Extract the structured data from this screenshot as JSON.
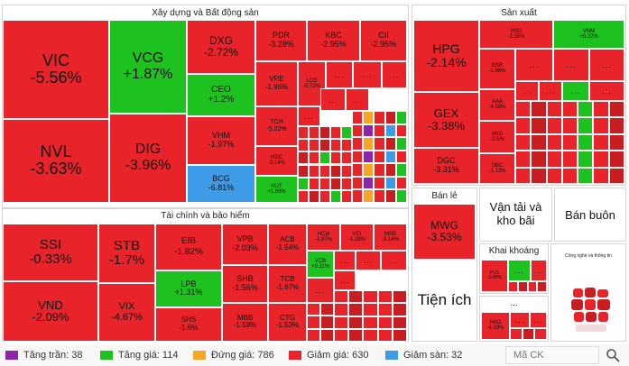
{
  "colors": {
    "red": "#e8242a",
    "green": "#1ec21e",
    "blue": "#3d9be8",
    "yellow": "#f5a623",
    "purple": "#8e24aa",
    "dark_red": "#c91d22"
  },
  "chart_data": {
    "type": "heatmap",
    "sectors": [
      {
        "name": "Xây dựng và Bất động sản",
        "tickers": [
          {
            "symbol": "VIC",
            "change": "-5.56%"
          },
          {
            "symbol": "NVL",
            "change": "-3.63%"
          },
          {
            "symbol": "VCG",
            "change": "+1.87%"
          },
          {
            "symbol": "DIG",
            "change": "-3.96%"
          },
          {
            "symbol": "DXG",
            "change": "-2.72%"
          },
          {
            "symbol": "CEO",
            "change": "+1.2%"
          },
          {
            "symbol": "VHM",
            "change": "-1.97%"
          },
          {
            "symbol": "BCG",
            "change": "-6.81%"
          },
          {
            "symbol": "PDR",
            "change": "-3.28%"
          },
          {
            "symbol": "KBC",
            "change": "-2.95%"
          },
          {
            "symbol": "CII",
            "change": "-2.95%"
          },
          {
            "symbol": "VRE",
            "change": "-1.96%"
          },
          {
            "symbol": "LCG",
            "change": "-0.72%"
          },
          {
            "symbol": "TCH",
            "change": "-5.02%"
          },
          {
            "symbol": "HDC",
            "change": "-3.14%"
          },
          {
            "symbol": "HUT",
            "change": "+1.89%"
          }
        ]
      },
      {
        "name": "Tài chính và bảo hiểm",
        "tickers": [
          {
            "symbol": "SSI",
            "change": "-0.33%"
          },
          {
            "symbol": "VND",
            "change": "-2.09%"
          },
          {
            "symbol": "STB",
            "change": "-1.7%"
          },
          {
            "symbol": "VIX",
            "change": "-4.67%"
          },
          {
            "symbol": "EIB",
            "change": "-1.82%"
          },
          {
            "symbol": "LPB",
            "change": "+1.31%"
          },
          {
            "symbol": "SHS",
            "change": "-1.6%"
          },
          {
            "symbol": "VPB",
            "change": "-2.03%"
          },
          {
            "symbol": "SHB",
            "change": "-1.56%"
          },
          {
            "symbol": "MBB",
            "change": "-1.59%"
          },
          {
            "symbol": "ACB",
            "change": "-1.54%"
          },
          {
            "symbol": "TCB",
            "change": "-1.87%"
          },
          {
            "symbol": "CTG",
            "change": "-1.53%"
          },
          {
            "symbol": "HCM",
            "change": "-1.97%"
          },
          {
            "symbol": "VCI",
            "change": "-1.39%"
          },
          {
            "symbol": "MSB",
            "change": "-2.14%"
          },
          {
            "symbol": "VCB",
            "change": "+0.11%"
          }
        ]
      },
      {
        "name": "Sản xuất",
        "tickers": [
          {
            "symbol": "HPG",
            "change": "-2.14%"
          },
          {
            "symbol": "GEX",
            "change": "-3.38%"
          },
          {
            "symbol": "DGC",
            "change": "-3.31%"
          },
          {
            "symbol": "HSG",
            "change": "-3.35%"
          },
          {
            "symbol": "VNM",
            "change": "+0.32%"
          },
          {
            "symbol": "BSR",
            "change": "-1.96%"
          },
          {
            "symbol": "AAA",
            "change": "-4.58%"
          },
          {
            "symbol": "NKG",
            "change": "-3.5%"
          },
          {
            "symbol": "DBC",
            "change": "-1.13%"
          }
        ]
      },
      {
        "name": "Bán lẻ",
        "tickers": [
          {
            "symbol": "MWG",
            "change": "-3.53%"
          }
        ]
      },
      {
        "name": "Khai khoáng",
        "tickers": [
          {
            "symbol": "PVS",
            "change": "-0.88%"
          }
        ]
      },
      {
        "name": "...",
        "tickers": [
          {
            "symbol": "HAG",
            "change": "-4.29%"
          }
        ]
      }
    ],
    "collapsed_sectors": [
      "Vận tải và kho bãi",
      "Bán buôn",
      "Tiện ích",
      "Công nghệ và thông tin"
    ],
    "legend": [
      {
        "label": "Tăng trần",
        "count": 38,
        "color": "#8e24aa"
      },
      {
        "label": "Tăng giá",
        "count": 114,
        "color": "#1ec21e"
      },
      {
        "label": "Đứng giá",
        "count": 786,
        "color": "#f5a623"
      },
      {
        "label": "Giảm giá",
        "count": 630,
        "color": "#e8242a"
      },
      {
        "label": "Giảm sàn",
        "count": 32,
        "color": "#3d9be8"
      }
    ]
  },
  "ui": {
    "ellipsis": "...",
    "legend_text": {
      "tang_tran": "Tăng trần: 38",
      "tang_gia": "Tăng giá: 114",
      "dung_gia": "Đứng giá: 786",
      "giam_gia": "Giảm giá: 630",
      "giam_san": "Giảm sàn: 32"
    },
    "search": {
      "placeholder": "Mã CK"
    },
    "icons": {
      "search": "search-icon",
      "logo": "fireant-logo-icon"
    }
  }
}
